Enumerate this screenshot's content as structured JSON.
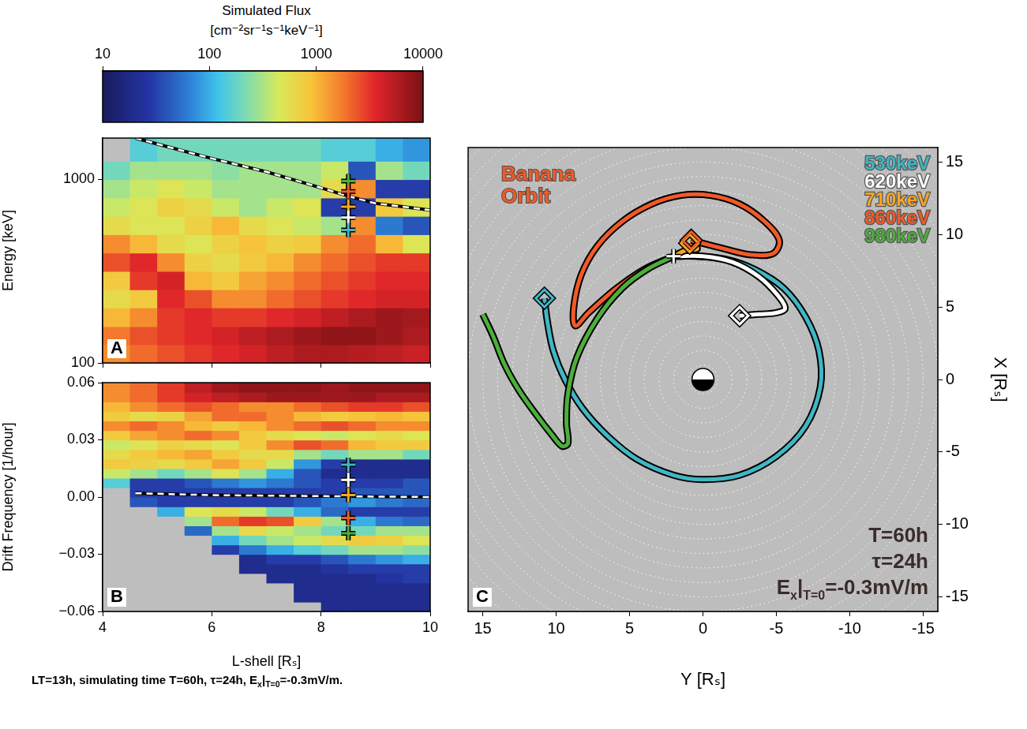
{
  "colorbar": {
    "title": "Simulated Flux",
    "units": "[cm⁻²sr⁻¹s⁻¹keV⁻¹]",
    "lim": [
      10,
      10000
    ],
    "ticks": [
      10,
      100,
      1000,
      10000
    ],
    "log": true
  },
  "caption": [
    "LT=13h, simulating time T=60h, τ=24h, E",
    {
      "sub": "x"
    },
    "|",
    {
      "sub": "T=0"
    },
    "=-0.3mV/m."
  ],
  "chart_data": [
    {
      "type": "heatmap",
      "panel": "A",
      "y_label": "Energy [keV]",
      "log": "y",
      "tick_labels": "y",
      "xlim": [
        4,
        10
      ],
      "xticks": [
        4,
        6,
        8,
        10
      ],
      "ylim": [
        100,
        1680
      ],
      "yticks": [
        100,
        1000
      ],
      "x_edges": [
        4,
        4.5,
        5,
        5.5,
        6,
        6.5,
        7,
        7.5,
        8,
        8.5,
        9,
        9.5,
        10
      ],
      "y_edges": [
        100,
        126,
        158,
        200,
        251,
        316,
        398,
        501,
        631,
        794,
        1000,
        1259,
        1680
      ],
      "cells": [
        [
          1500,
          2000,
          2500,
          3000,
          3500,
          4000,
          5000,
          6000,
          6000,
          5500,
          5000,
          4500
        ],
        [
          1800,
          2500,
          3000,
          3500,
          4000,
          5000,
          6000,
          7000,
          8000,
          8000,
          7000,
          6000
        ],
        [
          1000,
          1500,
          3000,
          3500,
          3000,
          3000,
          3500,
          4000,
          5000,
          6000,
          7000,
          6500
        ],
        [
          600,
          800,
          3500,
          2500,
          1500,
          1500,
          2000,
          2500,
          3000,
          3500,
          4000,
          4000
        ],
        [
          800,
          3000,
          4000,
          1000,
          800,
          1200,
          1500,
          2000,
          2500,
          3000,
          3500,
          3500
        ],
        [
          2500,
          3500,
          1500,
          700,
          600,
          800,
          1000,
          1500,
          2000,
          2500,
          3000,
          3000
        ],
        [
          1500,
          1000,
          600,
          500,
          700,
          900,
          700,
          800,
          1500,
          2000,
          1000,
          500
        ],
        [
          600,
          500,
          500,
          700,
          1000,
          600,
          500,
          400,
          300,
          1500,
          60,
          40
        ],
        [
          400,
          500,
          700,
          600,
          400,
          300,
          400,
          500,
          30,
          30,
          800,
          500
        ],
        [
          300,
          400,
          500,
          400,
          300,
          300,
          300,
          300,
          600,
          1500,
          30,
          30
        ],
        [
          200,
          300,
          300,
          300,
          250,
          300,
          300,
          300,
          400,
          40,
          300,
          200
        ],
        [
          null,
          150,
          200,
          200,
          200,
          200,
          200,
          200,
          150,
          150,
          100,
          80
        ]
      ],
      "series": [
        {
          "type": "line",
          "line_style": "dashed",
          "color": "#ffffff",
          "x": [
            4.6,
            5,
            6,
            7,
            8,
            8.5,
            9,
            10
          ],
          "values": [
            1680,
            1560,
            1300,
            1100,
            900,
            810,
            740,
            680
          ]
        },
        {
          "type": "scatter",
          "marker": "cross",
          "x": [
            8.5,
            8.5,
            8.5,
            8.5,
            8.5
          ],
          "values": [
            980,
            860,
            710,
            620,
            530
          ],
          "colors": [
            "#4caf3c",
            "#f05a28",
            "#f5a623",
            "#ffffff",
            "#41b6c4"
          ]
        }
      ]
    },
    {
      "type": "heatmap",
      "panel": "B",
      "y_label": "Drift Frequency [1/hour]",
      "x_label": "L-shell [Rₛ]",
      "tick_labels": true,
      "xlim": [
        4,
        10
      ],
      "xticks": [
        4,
        6,
        8,
        10
      ],
      "ylim": [
        -0.06,
        0.06
      ],
      "yticks": [
        {
          "value": -0.06,
          "label": "−0.06"
        },
        {
          "value": -0.03,
          "label": "−0.03"
        },
        {
          "value": 0,
          "label": "0.00"
        },
        0.03,
        0.06
      ],
      "x_edges": [
        4,
        4.5,
        5,
        5.5,
        6,
        6.5,
        7,
        7.5,
        8,
        8.5,
        9,
        9.5,
        10
      ],
      "y_edges": [
        -0.06,
        -0.055,
        -0.05,
        -0.045,
        -0.04,
        -0.035,
        -0.03,
        -0.025,
        -0.02,
        -0.015,
        -0.01,
        -0.005,
        0,
        0.005,
        0.01,
        0.015,
        0.02,
        0.025,
        0.03,
        0.035,
        0.04,
        0.045,
        0.05,
        0.055,
        0.06
      ],
      "cells": [
        [
          null,
          null,
          null,
          null,
          null,
          null,
          null,
          null,
          20,
          20,
          20,
          20
        ],
        [
          null,
          null,
          null,
          null,
          null,
          null,
          null,
          20,
          20,
          20,
          20,
          20
        ],
        [
          null,
          null,
          null,
          null,
          null,
          null,
          null,
          20,
          20,
          20,
          20,
          20
        ],
        [
          null,
          null,
          null,
          null,
          null,
          null,
          20,
          20,
          20,
          20,
          25,
          30
        ],
        [
          null,
          null,
          null,
          null,
          null,
          20,
          20,
          20,
          25,
          30,
          30,
          30
        ],
        [
          null,
          null,
          null,
          null,
          null,
          20,
          30,
          30,
          40,
          60,
          80,
          100
        ],
        [
          null,
          null,
          null,
          null,
          30,
          60,
          100,
          150,
          200,
          300,
          300,
          250
        ],
        [
          null,
          null,
          null,
          null,
          100,
          200,
          300,
          400,
          600,
          800,
          700,
          500
        ],
        [
          null,
          null,
          null,
          50,
          300,
          600,
          400,
          300,
          200,
          200,
          300,
          300
        ],
        [
          null,
          null,
          null,
          300,
          2000,
          3000,
          2500,
          800,
          300,
          100,
          60,
          50
        ],
        [
          null,
          null,
          100,
          500,
          600,
          400,
          200,
          100,
          50,
          30,
          30,
          30
        ],
        [
          null,
          40,
          30,
          30,
          30,
          30,
          30,
          40,
          60,
          80,
          60,
          50
        ],
        [
          null,
          30,
          30,
          30,
          30,
          30,
          30,
          30,
          30,
          40,
          40,
          40
        ],
        [
          150,
          30,
          30,
          40,
          60,
          80,
          60,
          40,
          30,
          30,
          30,
          40
        ],
        [
          400,
          300,
          200,
          300,
          500,
          300,
          100,
          40,
          20,
          20,
          20,
          20
        ],
        [
          800,
          700,
          600,
          800,
          1200,
          800,
          400,
          80,
          30,
          20,
          20,
          20
        ],
        [
          600,
          800,
          1000,
          1200,
          800,
          600,
          600,
          300,
          200,
          300,
          300,
          200
        ],
        [
          400,
          500,
          700,
          600,
          500,
          800,
          1500,
          2500,
          2000,
          1000,
          800,
          800
        ],
        [
          800,
          1200,
          1500,
          2000,
          1500,
          800,
          600,
          500,
          400,
          500,
          600,
          500
        ],
        [
          1500,
          2000,
          1500,
          1000,
          800,
          1000,
          1500,
          2000,
          2500,
          2000,
          1500,
          1500
        ],
        [
          800,
          600,
          700,
          1200,
          2000,
          2000,
          1500,
          1000,
          800,
          900,
          1000,
          900
        ],
        [
          1000,
          1500,
          2000,
          2500,
          2000,
          1500,
          1500,
          2000,
          2500,
          3000,
          3000,
          2500
        ],
        [
          1500,
          2000,
          3000,
          4000,
          5000,
          6000,
          7000,
          7000,
          7000,
          7000,
          6000,
          6000
        ],
        [
          1500,
          2000,
          3000,
          5000,
          7000,
          8000,
          8000,
          8000,
          7000,
          8000,
          8000,
          8000
        ]
      ],
      "series": [
        {
          "type": "line",
          "line_style": "dashed",
          "color": "#ffffff",
          "x": [
            4.6,
            6,
            8,
            10
          ],
          "values": [
            0.002,
            0.001,
            0.0005,
            0
          ]
        },
        {
          "type": "scatter",
          "marker": "cross",
          "x": [
            8.5,
            8.5,
            8.5,
            8.5,
            8.5
          ],
          "values": [
            -0.019,
            -0.011,
            0.001,
            0.009,
            0.017
          ],
          "colors": [
            "#4caf3c",
            "#f05a28",
            "#f5a623",
            "#ffffff",
            "#41b6c4"
          ]
        }
      ]
    },
    {
      "type": "line",
      "panel": "C",
      "x_label": "Y [Rₛ]",
      "y_label": "X [Rₛ]",
      "grid": true,
      "legend": "upper right",
      "xlim": [
        16,
        -16
      ],
      "xticks": [
        15,
        10,
        5,
        0,
        -5,
        -10,
        -15
      ],
      "ylim": [
        -16,
        16
      ],
      "yticks": [
        -15,
        -10,
        -5,
        0,
        5,
        10,
        15
      ],
      "annotations": [
        {
          "text": "Banana Orbit",
          "color": "#f05a28"
        },
        {
          "text": "T=60h"
        },
        {
          "text": "τ=24h"
        },
        {
          "parts": [
            "E",
            {
              "sub": "x"
            },
            "|",
            {
              "sub": "T=0"
            },
            "=-0.3mV/m"
          ]
        }
      ],
      "series": [
        {
          "name": "530keV",
          "type": "line",
          "color": "#41b6c4",
          "x": [
            10.8,
            10.6,
            10.2,
            9.4,
            8.2,
            6.5,
            4.5,
            2,
            0,
            -2.5,
            -5,
            -7,
            -8,
            -7.9,
            -7,
            -5.5,
            -3.5,
            -1.5,
            0.5,
            2
          ],
          "values": [
            5.6,
            4,
            2,
            0,
            -2,
            -3.9,
            -5.5,
            -6.6,
            -6.9,
            -6.6,
            -5.3,
            -3.2,
            -0.5,
            2,
            4.3,
            6.3,
            7.6,
            8.3,
            8.5,
            8.5
          ]
        },
        {
          "name": "620keV",
          "type": "line",
          "color": "#ffffff",
          "x": [
            2,
            0,
            -2,
            -3.8,
            -5.1,
            -5.6,
            -5,
            -3.8,
            -2.5
          ],
          "values": [
            8.5,
            8.5,
            8.1,
            7.1,
            5.8,
            4.9,
            4.6,
            4.5,
            4.4
          ]
        },
        {
          "name": "710keV",
          "type": "line",
          "color": "#f5a623",
          "x": [
            2,
            1.2,
            0.4,
            0.6,
            0.9
          ],
          "values": [
            8.5,
            8.9,
            9.0,
            9.3,
            9.4
          ]
        },
        {
          "name": "860keV",
          "type": "line",
          "color": "#f05a28",
          "x": [
            2,
            4,
            6,
            7.8,
            8.7,
            8.8,
            8.3,
            7.2,
            5.5,
            3.5,
            1.5,
            -0.5,
            -2.5,
            -4.2,
            -5.2,
            -4.8,
            -3.3,
            -1.5,
            0.8
          ],
          "values": [
            8.5,
            7.6,
            6.2,
            4.6,
            3.7,
            5,
            7.2,
            9.2,
            10.9,
            12.1,
            12.7,
            12.7,
            12.1,
            10.9,
            9.6,
            8.7,
            8.6,
            9.0,
            9.6
          ]
        },
        {
          "name": "980keV",
          "type": "line",
          "color": "#4caf3c",
          "x": [
            15,
            14.3,
            13.5,
            12.5,
            11.3,
            10.3,
            9.6,
            9.2,
            9.3,
            9.2,
            8.6,
            7.2,
            5.5,
            3.8,
            2
          ],
          "values": [
            4.5,
            3,
            1,
            -0.8,
            -2.5,
            -3.8,
            -4.6,
            -4.4,
            -3,
            -1,
            1.5,
            4.2,
            6.3,
            7.6,
            8.5
          ]
        },
        {
          "type": "scatter",
          "marker": "diamond",
          "x": [
            10.8,
            -2.5,
            0.9,
            0.8
          ],
          "values": [
            5.6,
            4.4,
            9.4,
            9.6
          ],
          "colors": [
            "#41b6c4",
            "#ffffff",
            "#f5a623",
            "#f05a28"
          ]
        },
        {
          "type": "scatter",
          "marker": "cross",
          "x": [
            2
          ],
          "values": [
            8.5
          ],
          "colors": [
            "#ffffff"
          ]
        }
      ]
    }
  ]
}
